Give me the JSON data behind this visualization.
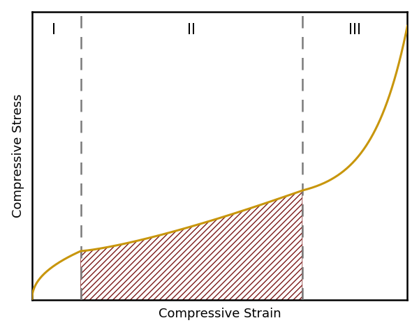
{
  "xlabel": "Compressive Strain",
  "ylabel": "Compressive Stress",
  "region_labels": [
    "I",
    "II",
    "III"
  ],
  "vline1_x": 0.13,
  "vline2_x": 0.72,
  "curve_color": "#C8960C",
  "hatch_color": "#7B1A1A",
  "dashed_color": "#7A7A7A",
  "background_color": "#ffffff",
  "label_fontsize": 13,
  "region_label_fontsize": 15,
  "xlim": [
    0,
    1.0
  ],
  "ylim": [
    0,
    1.0
  ],
  "curve_linewidth": 2.2,
  "figsize": [
    6.0,
    4.76
  ],
  "dpi": 100
}
